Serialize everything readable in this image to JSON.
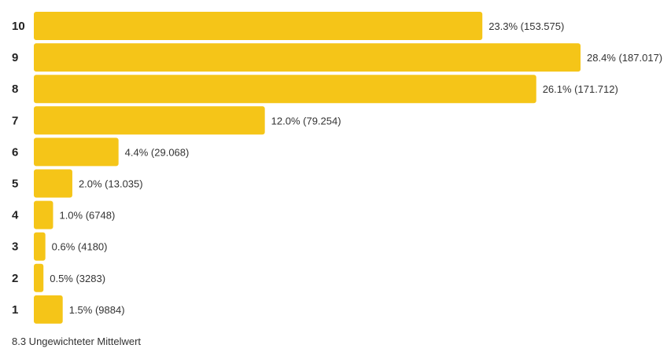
{
  "chart_data": {
    "type": "bar",
    "orientation": "horizontal",
    "categories": [
      "10",
      "9",
      "8",
      "7",
      "6",
      "5",
      "4",
      "3",
      "2",
      "1"
    ],
    "values": [
      23.3,
      28.4,
      26.1,
      12.0,
      4.4,
      2.0,
      1.0,
      0.6,
      0.5,
      1.5
    ],
    "value_labels": [
      "23.3% (153.575)",
      "28.4% (187.017)",
      "26.1% (171.712)",
      "12.0% (79.254)",
      "4.4% (29.068)",
      "2.0% (13.035)",
      "1.0% (6748)",
      "0.6% (4180)",
      "0.5% (3283)",
      "1.5% (9884)"
    ],
    "title": "",
    "xlabel": "",
    "ylabel": "",
    "grid": false,
    "bar_color": "#F5C518",
    "xlim": [
      0,
      28.4
    ]
  },
  "footer": {
    "text": "8.3 Ungewichteter Mittelwert"
  }
}
